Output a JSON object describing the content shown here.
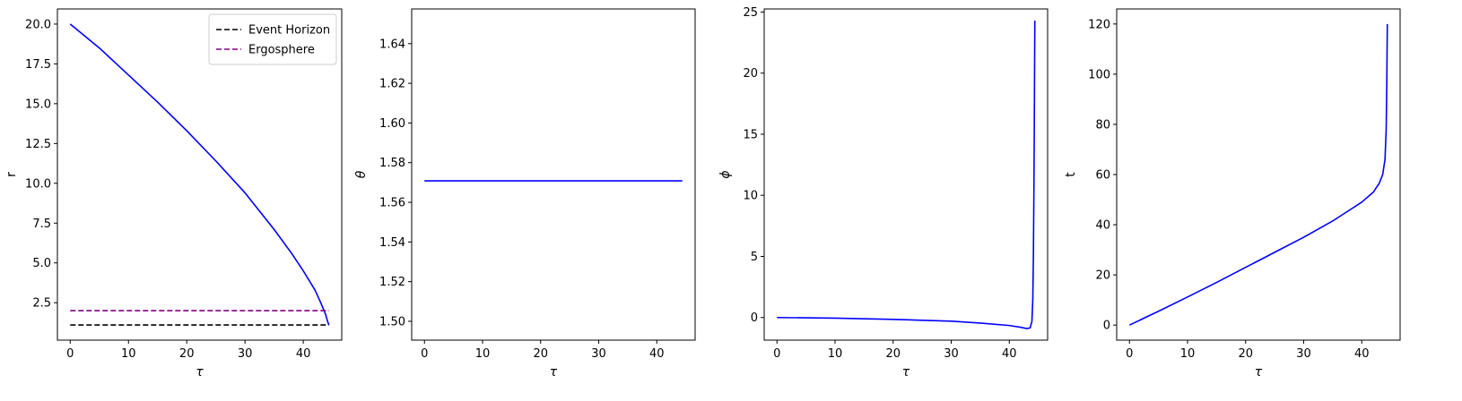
{
  "colors": {
    "trajectory": "#0000ff",
    "event_horizon": "#000000",
    "ergosphere": "#800080",
    "axes": "#000000",
    "legend_border": "#cccccc"
  },
  "chart_data": [
    {
      "type": "line",
      "xlabel": "τ",
      "ylabel": "r",
      "xlim": [
        -2.2,
        46.6
      ],
      "ylim": [
        0.15,
        20.95
      ],
      "xticks": [
        0,
        10,
        20,
        30,
        40
      ],
      "yticks": [
        2.5,
        5.0,
        7.5,
        10.0,
        12.5,
        15.0,
        17.5,
        20.0
      ],
      "ytick_labels": [
        "2.5",
        "5.0",
        "7.5",
        "10.0",
        "12.5",
        "15.0",
        "17.5",
        "20.0"
      ],
      "grid": false,
      "legend": "top-right",
      "series": [
        {
          "color_key": "trajectory",
          "style": "solid",
          "x": [
            0,
            5,
            10,
            15,
            20,
            25,
            30,
            35,
            38,
            40,
            42,
            43,
            43.8,
            44.2,
            44.4
          ],
          "y": [
            20.0,
            18.5,
            16.8,
            15.1,
            13.3,
            11.4,
            9.4,
            7.1,
            5.6,
            4.5,
            3.3,
            2.5,
            1.8,
            1.3,
            1.1
          ]
        },
        {
          "name": "Event Horizon",
          "color_key": "event_horizon",
          "style": "dashed",
          "x": [
            0,
            44.4
          ],
          "y": [
            1.1,
            1.1
          ]
        },
        {
          "name": "Ergosphere",
          "color_key": "ergosphere",
          "style": "dashed",
          "x": [
            0,
            44.4
          ],
          "y": [
            2.0,
            2.0
          ]
        }
      ]
    },
    {
      "type": "line",
      "xlabel": "τ",
      "ylabel": "θ",
      "xlim": [
        -2.2,
        46.6
      ],
      "ylim": [
        1.4905,
        1.6575
      ],
      "xticks": [
        0,
        10,
        20,
        30,
        40
      ],
      "yticks": [
        1.5,
        1.52,
        1.54,
        1.56,
        1.58,
        1.6,
        1.62,
        1.64
      ],
      "ytick_labels": [
        "1.50",
        "1.52",
        "1.54",
        "1.56",
        "1.58",
        "1.60",
        "1.62",
        "1.64"
      ],
      "grid": false,
      "series": [
        {
          "color_key": "trajectory",
          "style": "solid",
          "x": [
            0,
            44.4
          ],
          "y": [
            1.5708,
            1.5708
          ]
        }
      ]
    },
    {
      "type": "line",
      "xlabel": "τ",
      "ylabel": "ϕ",
      "xlim": [
        -2.2,
        46.6
      ],
      "ylim": [
        -1.85,
        25.25
      ],
      "xticks": [
        0,
        10,
        20,
        30,
        40
      ],
      "yticks": [
        0,
        5,
        10,
        15,
        20,
        25
      ],
      "ytick_labels": [
        "0",
        "5",
        "10",
        "15",
        "20",
        "25"
      ],
      "grid": false,
      "series": [
        {
          "color_key": "trajectory",
          "style": "solid",
          "x": [
            0,
            10,
            20,
            30,
            35,
            40,
            42,
            43,
            43.6,
            43.9,
            44.05,
            44.15,
            44.25,
            44.3,
            44.35,
            44.4
          ],
          "y": [
            0,
            -0.05,
            -0.15,
            -0.3,
            -0.45,
            -0.65,
            -0.8,
            -0.9,
            -0.85,
            -0.3,
            1.5,
            5.0,
            11.0,
            15.0,
            20.0,
            24.3
          ]
        }
      ]
    },
    {
      "type": "line",
      "xlabel": "τ",
      "ylabel": "t",
      "xlim": [
        -2.2,
        46.6
      ],
      "ylim": [
        -6.0,
        126.0
      ],
      "xticks": [
        0,
        10,
        20,
        30,
        40
      ],
      "yticks": [
        0,
        20,
        40,
        60,
        80,
        100,
        120
      ],
      "ytick_labels": [
        "0",
        "20",
        "40",
        "60",
        "80",
        "100",
        "120"
      ],
      "grid": false,
      "series": [
        {
          "color_key": "trajectory",
          "style": "solid",
          "x": [
            0,
            5,
            10,
            15,
            20,
            25,
            30,
            35,
            38,
            40,
            42,
            43,
            43.6,
            44.0,
            44.2,
            44.3,
            44.4
          ],
          "y": [
            0,
            5.5,
            11.2,
            17.0,
            23.0,
            29.0,
            35.0,
            41.5,
            46.0,
            49.0,
            53.0,
            56.5,
            60.0,
            66.0,
            78.0,
            95.0,
            120.0
          ]
        }
      ]
    }
  ]
}
